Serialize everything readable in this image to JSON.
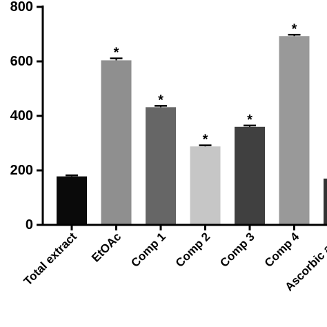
{
  "chart_data": {
    "type": "bar",
    "title": "",
    "xlabel": "",
    "ylabel": "",
    "ylim": [
      0,
      800
    ],
    "yticks": [
      0,
      200,
      400,
      600,
      800
    ],
    "grid": false,
    "categories": [
      "Total extract",
      "EtOAc",
      "Comp 1",
      "Comp 2",
      "Comp 3",
      "Comp 4",
      "Ascorbic acid"
    ],
    "values": [
      178,
      604,
      432,
      288,
      360,
      693,
      170
    ],
    "errors": [
      4,
      7,
      5,
      4,
      5,
      5,
      0
    ],
    "significance": [
      "",
      "*",
      "*",
      "*",
      "*",
      "*",
      ""
    ],
    "colors": [
      "#0a0a0a",
      "#8f8f8f",
      "#666666",
      "#c6c6c6",
      "#404040",
      "#999999",
      "#333333"
    ]
  }
}
